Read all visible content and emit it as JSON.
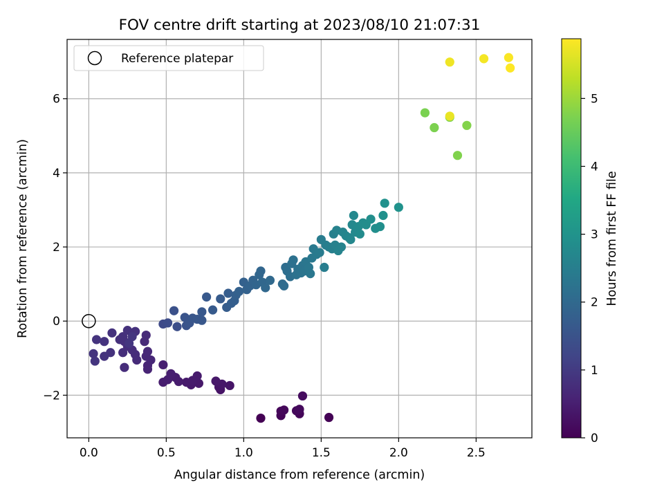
{
  "chart_data": {
    "type": "scatter",
    "title": "FOV centre drift starting at 2023/08/10 21:07:31",
    "xlabel": "Angular distance from reference (arcmin)",
    "ylabel": "Rotation from reference (arcmin)",
    "xlim": [
      -0.14,
      2.86
    ],
    "ylim": [
      -3.15,
      7.6
    ],
    "x_ticks": [
      0.0,
      0.5,
      1.0,
      1.5,
      2.0,
      2.5
    ],
    "x_tick_labels": [
      "0.0",
      "0.5",
      "1.0",
      "1.5",
      "2.0",
      "2.5"
    ],
    "y_ticks": [
      -2,
      0,
      2,
      4,
      6
    ],
    "y_tick_labels": [
      "−2",
      "0",
      "2",
      "4",
      "6"
    ],
    "grid": true,
    "legend": {
      "position": "top-left",
      "entries": [
        "Reference platepar"
      ]
    },
    "reference_marker": {
      "x": 0.0,
      "y": 0.0,
      "label": "Reference platepar",
      "style": "open-circle"
    },
    "colorbar": {
      "label": "Hours from first FF file",
      "colormap": "viridis",
      "range": [
        0,
        5.88
      ],
      "ticks": [
        0,
        1,
        2,
        3,
        4,
        5
      ],
      "tick_labels": [
        "0",
        "1",
        "2",
        "3",
        "4",
        "5"
      ]
    },
    "series": [
      {
        "values": [
          {
            "x": 1.11,
            "y": -2.62,
            "c": 0.0
          },
          {
            "x": 1.55,
            "y": -2.6,
            "c": 0.02
          },
          {
            "x": 1.24,
            "y": -2.55,
            "c": 0.05
          },
          {
            "x": 1.36,
            "y": -2.5,
            "c": 0.07
          },
          {
            "x": 1.24,
            "y": -2.43,
            "c": 0.09
          },
          {
            "x": 1.26,
            "y": -2.4,
            "c": 0.11
          },
          {
            "x": 1.34,
            "y": -2.42,
            "c": 0.13
          },
          {
            "x": 1.36,
            "y": -2.38,
            "c": 0.15
          },
          {
            "x": 1.38,
            "y": -2.02,
            "c": 0.18
          },
          {
            "x": 0.85,
            "y": -1.85,
            "c": 0.3
          },
          {
            "x": 0.84,
            "y": -1.78,
            "c": 0.32
          },
          {
            "x": 0.91,
            "y": -1.74,
            "c": 0.34
          },
          {
            "x": 0.86,
            "y": -1.7,
            "c": 0.36
          },
          {
            "x": 0.82,
            "y": -1.62,
            "c": 0.38
          },
          {
            "x": 0.71,
            "y": -1.68,
            "c": 0.4
          },
          {
            "x": 0.66,
            "y": -1.72,
            "c": 0.41
          },
          {
            "x": 0.63,
            "y": -1.65,
            "c": 0.42
          },
          {
            "x": 0.67,
            "y": -1.6,
            "c": 0.43
          },
          {
            "x": 0.7,
            "y": -1.48,
            "c": 0.44
          },
          {
            "x": 0.58,
            "y": -1.63,
            "c": 0.45
          },
          {
            "x": 0.56,
            "y": -1.52,
            "c": 0.46
          },
          {
            "x": 0.48,
            "y": -1.65,
            "c": 0.47
          },
          {
            "x": 0.51,
            "y": -1.58,
            "c": 0.48
          },
          {
            "x": 0.53,
            "y": -1.42,
            "c": 0.49
          },
          {
            "x": 0.48,
            "y": -1.18,
            "c": 0.5
          },
          {
            "x": 0.38,
            "y": -1.3,
            "c": 0.6
          },
          {
            "x": 0.38,
            "y": -1.2,
            "c": 0.62
          },
          {
            "x": 0.4,
            "y": -1.05,
            "c": 0.64
          },
          {
            "x": 0.37,
            "y": -0.95,
            "c": 0.66
          },
          {
            "x": 0.38,
            "y": -0.82,
            "c": 0.68
          },
          {
            "x": 0.36,
            "y": -0.55,
            "c": 0.7
          },
          {
            "x": 0.37,
            "y": -0.38,
            "c": 0.71
          },
          {
            "x": 0.31,
            "y": -1.05,
            "c": 0.72
          },
          {
            "x": 0.3,
            "y": -0.9,
            "c": 0.74
          },
          {
            "x": 0.28,
            "y": -0.78,
            "c": 0.75
          },
          {
            "x": 0.23,
            "y": -1.25,
            "c": 0.76
          },
          {
            "x": 0.22,
            "y": -0.85,
            "c": 0.77
          },
          {
            "x": 0.25,
            "y": -0.68,
            "c": 0.78
          },
          {
            "x": 0.23,
            "y": -0.55,
            "c": 0.79
          },
          {
            "x": 0.2,
            "y": -0.5,
            "c": 0.8
          },
          {
            "x": 0.22,
            "y": -0.42,
            "c": 0.81
          },
          {
            "x": 0.25,
            "y": -0.25,
            "c": 0.82
          },
          {
            "x": 0.3,
            "y": -0.28,
            "c": 0.83
          },
          {
            "x": 0.15,
            "y": -0.32,
            "c": 0.84
          },
          {
            "x": 0.14,
            "y": -0.85,
            "c": 0.85
          },
          {
            "x": 0.1,
            "y": -0.95,
            "c": 0.86
          },
          {
            "x": 0.1,
            "y": -0.55,
            "c": 0.87
          },
          {
            "x": 0.05,
            "y": -0.5,
            "c": 0.88
          },
          {
            "x": 0.03,
            "y": -0.88,
            "c": 0.89
          },
          {
            "x": 0.04,
            "y": -1.08,
            "c": 0.9
          },
          {
            "x": 0.26,
            "y": -0.6,
            "c": 0.91
          },
          {
            "x": 0.28,
            "y": -0.42,
            "c": 0.92
          },
          {
            "x": 0.48,
            "y": -0.08,
            "c": 1.3
          },
          {
            "x": 0.51,
            "y": -0.05,
            "c": 1.35
          },
          {
            "x": 0.57,
            "y": -0.15,
            "c": 1.4
          },
          {
            "x": 0.55,
            "y": 0.28,
            "c": 1.45
          },
          {
            "x": 0.63,
            "y": -0.12,
            "c": 1.5
          },
          {
            "x": 0.62,
            "y": 0.1,
            "c": 1.52
          },
          {
            "x": 0.65,
            "y": -0.05,
            "c": 1.54
          },
          {
            "x": 0.67,
            "y": 0.08,
            "c": 1.56
          },
          {
            "x": 0.7,
            "y": 0.05,
            "c": 1.58
          },
          {
            "x": 0.73,
            "y": 0.02,
            "c": 1.6
          },
          {
            "x": 0.73,
            "y": 0.25,
            "c": 1.62
          },
          {
            "x": 0.76,
            "y": 0.65,
            "c": 1.64
          },
          {
            "x": 0.8,
            "y": 0.3,
            "c": 1.66
          },
          {
            "x": 0.85,
            "y": 0.6,
            "c": 1.68
          },
          {
            "x": 0.89,
            "y": 0.37,
            "c": 1.7
          },
          {
            "x": 0.9,
            "y": 0.75,
            "c": 1.72
          },
          {
            "x": 0.92,
            "y": 0.48,
            "c": 1.74
          },
          {
            "x": 0.94,
            "y": 0.55,
            "c": 1.76
          },
          {
            "x": 0.95,
            "y": 0.7,
            "c": 1.78
          },
          {
            "x": 0.97,
            "y": 0.8,
            "c": 1.8
          },
          {
            "x": 1.0,
            "y": 1.05,
            "c": 1.82
          },
          {
            "x": 1.02,
            "y": 0.85,
            "c": 1.84
          },
          {
            "x": 1.04,
            "y": 0.95,
            "c": 1.86
          },
          {
            "x": 1.06,
            "y": 1.1,
            "c": 1.88
          },
          {
            "x": 1.08,
            "y": 0.98,
            "c": 1.9
          },
          {
            "x": 1.1,
            "y": 1.25,
            "c": 1.92
          },
          {
            "x": 1.11,
            "y": 1.35,
            "c": 1.94
          },
          {
            "x": 1.12,
            "y": 1.05,
            "c": 1.96
          },
          {
            "x": 1.14,
            "y": 0.9,
            "c": 1.98
          },
          {
            "x": 1.17,
            "y": 1.1,
            "c": 2.0
          },
          {
            "x": 1.25,
            "y": 1.0,
            "c": 2.05
          },
          {
            "x": 1.26,
            "y": 0.95,
            "c": 2.08
          },
          {
            "x": 1.27,
            "y": 1.45,
            "c": 2.1
          },
          {
            "x": 1.28,
            "y": 1.35,
            "c": 2.12
          },
          {
            "x": 1.3,
            "y": 1.2,
            "c": 2.14
          },
          {
            "x": 1.31,
            "y": 1.55,
            "c": 2.16
          },
          {
            "x": 1.32,
            "y": 1.65,
            "c": 2.18
          },
          {
            "x": 1.34,
            "y": 1.25,
            "c": 2.2
          },
          {
            "x": 1.35,
            "y": 1.4,
            "c": 2.22
          },
          {
            "x": 1.37,
            "y": 1.3,
            "c": 2.24
          },
          {
            "x": 1.38,
            "y": 1.5,
            "c": 2.26
          },
          {
            "x": 1.39,
            "y": 1.35,
            "c": 2.28
          },
          {
            "x": 1.4,
            "y": 1.6,
            "c": 2.3
          },
          {
            "x": 1.42,
            "y": 1.45,
            "c": 2.32
          },
          {
            "x": 1.43,
            "y": 1.28,
            "c": 2.34
          },
          {
            "x": 1.44,
            "y": 1.7,
            "c": 2.36
          },
          {
            "x": 1.45,
            "y": 1.95,
            "c": 2.38
          },
          {
            "x": 1.47,
            "y": 1.8,
            "c": 2.4
          },
          {
            "x": 1.49,
            "y": 1.85,
            "c": 2.42
          },
          {
            "x": 1.5,
            "y": 2.2,
            "c": 2.44
          },
          {
            "x": 1.52,
            "y": 1.45,
            "c": 2.46
          },
          {
            "x": 1.53,
            "y": 2.05,
            "c": 2.48
          },
          {
            "x": 1.55,
            "y": 2.0,
            "c": 2.5
          },
          {
            "x": 1.57,
            "y": 1.95,
            "c": 2.52
          },
          {
            "x": 1.58,
            "y": 2.35,
            "c": 2.54
          },
          {
            "x": 1.59,
            "y": 2.05,
            "c": 2.56
          },
          {
            "x": 1.6,
            "y": 2.45,
            "c": 2.58
          },
          {
            "x": 1.61,
            "y": 1.9,
            "c": 2.6
          },
          {
            "x": 1.63,
            "y": 2.0,
            "c": 2.62
          },
          {
            "x": 1.64,
            "y": 2.4,
            "c": 2.64
          },
          {
            "x": 1.66,
            "y": 2.3,
            "c": 2.66
          },
          {
            "x": 1.68,
            "y": 2.25,
            "c": 2.68
          },
          {
            "x": 1.69,
            "y": 2.2,
            "c": 2.7
          },
          {
            "x": 1.7,
            "y": 2.6,
            "c": 2.72
          },
          {
            "x": 1.71,
            "y": 2.85,
            "c": 2.74
          },
          {
            "x": 1.72,
            "y": 2.4,
            "c": 2.76
          },
          {
            "x": 1.74,
            "y": 2.55,
            "c": 2.78
          },
          {
            "x": 1.75,
            "y": 2.35,
            "c": 2.8
          },
          {
            "x": 1.77,
            "y": 2.65,
            "c": 2.82
          },
          {
            "x": 1.79,
            "y": 2.6,
            "c": 2.84
          },
          {
            "x": 1.82,
            "y": 2.75,
            "c": 2.86
          },
          {
            "x": 1.85,
            "y": 2.5,
            "c": 2.88
          },
          {
            "x": 1.88,
            "y": 2.55,
            "c": 2.9
          },
          {
            "x": 1.9,
            "y": 2.85,
            "c": 2.92
          },
          {
            "x": 1.91,
            "y": 3.18,
            "c": 2.94
          },
          {
            "x": 2.0,
            "y": 3.07,
            "c": 2.96
          },
          {
            "x": 2.17,
            "y": 5.62,
            "c": 4.7
          },
          {
            "x": 2.23,
            "y": 5.22,
            "c": 4.72
          },
          {
            "x": 2.33,
            "y": 5.5,
            "c": 4.74
          },
          {
            "x": 2.38,
            "y": 4.47,
            "c": 4.76
          },
          {
            "x": 2.44,
            "y": 5.28,
            "c": 4.78
          },
          {
            "x": 2.33,
            "y": 5.53,
            "c": 5.7
          },
          {
            "x": 2.33,
            "y": 6.99,
            "c": 5.75
          },
          {
            "x": 2.55,
            "y": 7.08,
            "c": 5.8
          },
          {
            "x": 2.71,
            "y": 7.11,
            "c": 5.84
          },
          {
            "x": 2.72,
            "y": 6.83,
            "c": 5.88
          }
        ]
      }
    ]
  }
}
